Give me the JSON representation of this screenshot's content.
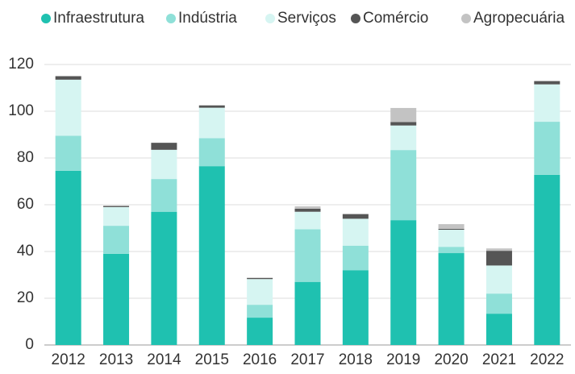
{
  "chart_data": {
    "type": "stacked_bar",
    "categories": [
      "2012",
      "2013",
      "2014",
      "2015",
      "2016",
      "2017",
      "2018",
      "2019",
      "2020",
      "2021",
      "2022"
    ],
    "series": [
      {
        "name": "Infraestrutura",
        "color": "#1fc1b0",
        "values": [
          74.5,
          39,
          57,
          76.5,
          11.7,
          27,
          32,
          53.4,
          39.3,
          13.4,
          72.8
        ]
      },
      {
        "name": "Indústria",
        "color": "#8fe0d8",
        "values": [
          15,
          12,
          14,
          12,
          5.5,
          22.5,
          10.5,
          30,
          2.7,
          8.6,
          22.7
        ]
      },
      {
        "name": "Serviços",
        "color": "#d6f5f2",
        "values": [
          24,
          8,
          12.5,
          13,
          11,
          7.5,
          11.5,
          10.5,
          7.3,
          12,
          16
        ]
      },
      {
        "name": "Comércio",
        "color": "#555555",
        "values": [
          1.5,
          0.5,
          3,
          1,
          0.5,
          1.3,
          2,
          1.5,
          0.4,
          6.3,
          1.4
        ]
      },
      {
        "name": "Agropecuária",
        "color": "#c3c3c3",
        "values": [
          0,
          0,
          0,
          0,
          0,
          1,
          0,
          6,
          2,
          1,
          0
        ]
      }
    ],
    "ylim": [
      0,
      120
    ],
    "yticks": [
      0,
      20,
      40,
      60,
      80,
      100,
      120
    ],
    "grid": true,
    "legend": "top"
  }
}
